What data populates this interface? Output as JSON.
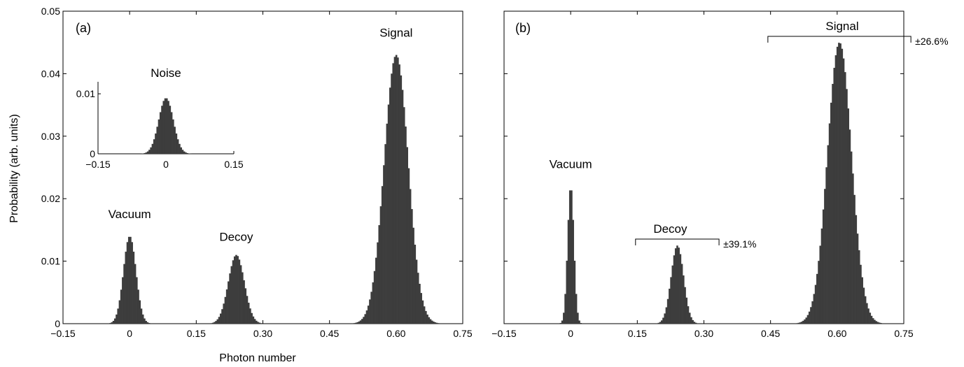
{
  "figure": {
    "ylabel": "Probability (arb. units)",
    "xlabel": "Photon number"
  },
  "chart_data": [
    {
      "id": "a",
      "type": "bar",
      "panel_label": "(a)",
      "xlim": [
        -0.15,
        0.75
      ],
      "ylim": [
        0,
        0.05
      ],
      "xticks": [
        "−0.15",
        "0",
        "0.15",
        "0.30",
        "0.45",
        "0.60",
        "0.75"
      ],
      "xtick_values": [
        -0.15,
        0,
        0.15,
        0.3,
        0.45,
        0.6,
        0.75
      ],
      "yticks": [
        "0",
        "0.01",
        "0.02",
        "0.03",
        "0.04",
        "0.05"
      ],
      "ytick_values": [
        0,
        0.01,
        0.02,
        0.03,
        0.04,
        0.05
      ],
      "peaks": [
        {
          "name": "Vacuum",
          "center": 0.0,
          "peak": 0.014,
          "sigma": 0.014
        },
        {
          "name": "Decoy",
          "center": 0.24,
          "peak": 0.011,
          "sigma": 0.018
        },
        {
          "name": "Signal",
          "center": 0.6,
          "peak": 0.043,
          "sigma": 0.027
        }
      ],
      "inset": {
        "title": "Noise",
        "xlim": [
          -0.15,
          0.15
        ],
        "ylim": [
          0,
          0.012
        ],
        "xticks": [
          "−0.15",
          "0",
          "0.15"
        ],
        "xtick_values": [
          -0.15,
          0,
          0.15
        ],
        "yticks": [
          "0",
          "0.01"
        ],
        "ytick_values": [
          0,
          0.01
        ],
        "peak": {
          "center": 0.0,
          "peak": 0.0093,
          "sigma": 0.016
        }
      }
    },
    {
      "id": "b",
      "type": "bar",
      "panel_label": "(b)",
      "xlim": [
        -0.15,
        0.75
      ],
      "ylim": [
        0,
        0.05
      ],
      "xticks": [
        "−0.15",
        "0",
        "0.15",
        "0.30",
        "0.45",
        "0.60",
        "0.75"
      ],
      "xtick_values": [
        -0.15,
        0,
        0.15,
        0.3,
        0.45,
        0.6,
        0.75
      ],
      "peaks": [
        {
          "name": "Vacuum",
          "center": 0.0,
          "peak": 0.022,
          "sigma": 0.007
        },
        {
          "name": "Decoy",
          "center": 0.24,
          "peak": 0.0125,
          "sigma": 0.014
        },
        {
          "name": "Signal",
          "center": 0.605,
          "peak": 0.045,
          "sigma": 0.027
        }
      ],
      "brackets": [
        {
          "target": "Decoy",
          "from": 0.146,
          "to": 0.334,
          "label": "±39.1%"
        },
        {
          "target": "Signal",
          "from": 0.444,
          "to": 0.766,
          "label": "±26.6%"
        }
      ]
    }
  ]
}
